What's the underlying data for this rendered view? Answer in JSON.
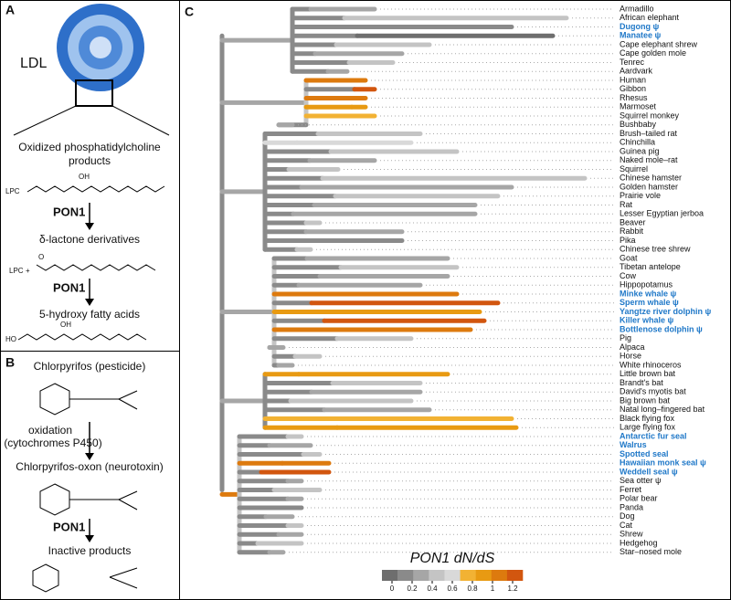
{
  "panel_a": {
    "letter": "A",
    "ldl": "LDL",
    "substrate": "Oxidized phosphatidylcholine\nproducts",
    "atoms1": [
      "LPC",
      "OH"
    ],
    "enzyme1": "PON1",
    "intermediate": "δ-lactone derivatives",
    "atoms2": [
      "LPC",
      "+",
      "O"
    ],
    "enzyme2": "PON1",
    "product": "5-hydroxy fatty acids",
    "atoms3": [
      "HO",
      "OH"
    ]
  },
  "panel_b": {
    "letter": "B",
    "substrate": "Chlorpyrifos (pesticide)",
    "step": "oxidation",
    "step_detail": "(cytochromes P450)",
    "intermediate": "Chlorpyrifos-oxon (neurotoxin)",
    "enzyme": "PON1",
    "product": "Inactive products"
  },
  "panel_c": {
    "letter": "C",
    "leaves": [
      {
        "name": "Armadillo",
        "highlighted": false
      },
      {
        "name": "African elephant",
        "highlighted": false
      },
      {
        "name": "Dugong ψ",
        "highlighted": true
      },
      {
        "name": "Manatee ψ",
        "highlighted": true
      },
      {
        "name": "Cape elephant shrew",
        "highlighted": false
      },
      {
        "name": "Cape golden mole",
        "highlighted": false
      },
      {
        "name": "Tenrec",
        "highlighted": false
      },
      {
        "name": "Aardvark",
        "highlighted": false
      },
      {
        "name": "Human",
        "highlighted": false
      },
      {
        "name": "Gibbon",
        "highlighted": false
      },
      {
        "name": "Rhesus",
        "highlighted": false
      },
      {
        "name": "Marmoset",
        "highlighted": false
      },
      {
        "name": "Squirrel monkey",
        "highlighted": false
      },
      {
        "name": "Bushbaby",
        "highlighted": false
      },
      {
        "name": "Brush–tailed rat",
        "highlighted": false
      },
      {
        "name": "Chinchilla",
        "highlighted": false
      },
      {
        "name": "Guinea pig",
        "highlighted": false
      },
      {
        "name": "Naked mole–rat",
        "highlighted": false
      },
      {
        "name": "Squirrel",
        "highlighted": false
      },
      {
        "name": "Chinese hamster",
        "highlighted": false
      },
      {
        "name": "Golden hamster",
        "highlighted": false
      },
      {
        "name": "Prairie vole",
        "highlighted": false
      },
      {
        "name": "Rat",
        "highlighted": false
      },
      {
        "name": "Lesser Egyptian jerboa",
        "highlighted": false
      },
      {
        "name": "Beaver",
        "highlighted": false
      },
      {
        "name": "Rabbit",
        "highlighted": false
      },
      {
        "name": "Pika",
        "highlighted": false
      },
      {
        "name": "Chinese tree shrew",
        "highlighted": false
      },
      {
        "name": "Goat",
        "highlighted": false
      },
      {
        "name": "Tibetan antelope",
        "highlighted": false
      },
      {
        "name": "Cow",
        "highlighted": false
      },
      {
        "name": "Hippopotamus",
        "highlighted": false
      },
      {
        "name": "Minke whale ψ",
        "highlighted": true
      },
      {
        "name": "Sperm whale ψ",
        "highlighted": true
      },
      {
        "name": "Yangtze river dolphin ψ",
        "highlighted": true
      },
      {
        "name": "Killer whale ψ",
        "highlighted": true
      },
      {
        "name": "Bottlenose dolphin ψ",
        "highlighted": true
      },
      {
        "name": "Pig",
        "highlighted": false
      },
      {
        "name": "Alpaca",
        "highlighted": false
      },
      {
        "name": "Horse",
        "highlighted": false
      },
      {
        "name": "White rhinoceros",
        "highlighted": false
      },
      {
        "name": "Little brown bat",
        "highlighted": false
      },
      {
        "name": "Brandt's bat",
        "highlighted": false
      },
      {
        "name": "David's myotis bat",
        "highlighted": false
      },
      {
        "name": "Big brown bat",
        "highlighted": false
      },
      {
        "name": "Natal long–fingered bat",
        "highlighted": false
      },
      {
        "name": "Black flying fox",
        "highlighted": false
      },
      {
        "name": "Large flying fox",
        "highlighted": false
      },
      {
        "name": "Antarctic fur seal",
        "highlighted": true
      },
      {
        "name": "Walrus",
        "highlighted": true
      },
      {
        "name": "Spotted seal",
        "highlighted": true
      },
      {
        "name": "Hawaiian monk seal ψ",
        "highlighted": true
      },
      {
        "name": "Weddell seal ψ",
        "highlighted": true
      },
      {
        "name": "Sea otter ψ",
        "highlighted": false
      },
      {
        "name": "Ferret",
        "highlighted": false
      },
      {
        "name": "Polar bear",
        "highlighted": false
      },
      {
        "name": "Panda",
        "highlighted": false
      },
      {
        "name": "Dog",
        "highlighted": false
      },
      {
        "name": "Cat",
        "highlighted": false
      },
      {
        "name": "Shrew",
        "highlighted": false
      },
      {
        "name": "Hedgehog",
        "highlighted": false
      },
      {
        "name": "Star–nosed mole",
        "highlighted": false
      }
    ],
    "colorbar": {
      "title": "PON1 dN/dS",
      "range": [
        -0.1,
        1.3
      ],
      "ticks": [
        0,
        0.2,
        0.4,
        0.6,
        0.8,
        1,
        1.2
      ],
      "colors": [
        "#6e6e6e",
        "#8a8a8a",
        "#a6a6a6",
        "#c4c4c4",
        "#d9d9d9",
        "#f2b233",
        "#e89a12",
        "#dd7a0e",
        "#d2560f"
      ]
    }
  }
}
